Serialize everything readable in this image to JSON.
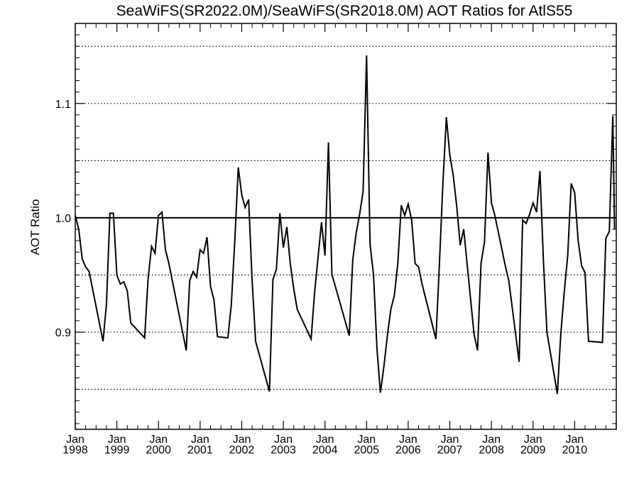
{
  "chart_data": {
    "type": "line",
    "title": "SeaWiFS(SR2022.0M)/SeaWiFS(SR2018.0M)  AOT Ratios for AtlS55",
    "xlabel": "",
    "ylabel": "AOT Ratio",
    "xlim": [
      "1998-01",
      "2011-01"
    ],
    "ylim": [
      0.815,
      1.17
    ],
    "yticks": [
      0.9,
      1.0,
      1.1
    ],
    "ytick_labels": [
      "0.9",
      "1.0",
      "1.1"
    ],
    "xticks": [
      {
        "top": "Jan",
        "bottom": "1998"
      },
      {
        "top": "Jan",
        "bottom": "1999"
      },
      {
        "top": "Jan",
        "bottom": "2000"
      },
      {
        "top": "Jan",
        "bottom": "2001"
      },
      {
        "top": "Jan",
        "bottom": "2002"
      },
      {
        "top": "Jan",
        "bottom": "2003"
      },
      {
        "top": "Jan",
        "bottom": "2004"
      },
      {
        "top": "Jan",
        "bottom": "2005"
      },
      {
        "top": "Jan",
        "bottom": "2006"
      },
      {
        "top": "Jan",
        "bottom": "2007"
      },
      {
        "top": "Jan",
        "bottom": "2008"
      },
      {
        "top": "Jan",
        "bottom": "2009"
      },
      {
        "top": "Jan",
        "bottom": "2010"
      }
    ],
    "reference_line": 1.0,
    "dotted_gridlines": [
      0.85,
      0.9,
      0.95,
      1.05,
      1.1,
      1.15
    ],
    "grid": true,
    "series": [
      {
        "x": [
          "1998-01",
          "1998-02",
          "1998-03",
          "1998-04",
          "1998-05",
          "1998-09",
          "1998-10",
          "1998-11",
          "1998-12",
          "1999-01",
          "1999-02",
          "1999-03",
          "1999-04",
          "1999-05",
          "1999-09",
          "1999-10",
          "1999-11",
          "1999-12",
          "2000-01",
          "2000-02",
          "2000-03",
          "2000-04",
          "2000-09",
          "2000-10",
          "2000-11",
          "2000-12",
          "2001-01",
          "2001-02",
          "2001-03",
          "2001-04",
          "2001-05",
          "2001-06",
          "2001-09",
          "2001-10",
          "2001-11",
          "2001-12",
          "2002-01",
          "2002-02",
          "2002-03",
          "2002-04",
          "2002-05",
          "2002-09",
          "2002-10",
          "2002-11",
          "2002-12",
          "2003-01",
          "2003-02",
          "2003-03",
          "2003-04",
          "2003-05",
          "2003-09",
          "2003-10",
          "2003-11",
          "2003-12",
          "2004-01",
          "2004-02",
          "2004-03",
          "2004-04",
          "2004-08",
          "2004-09",
          "2004-10",
          "2004-11",
          "2004-12",
          "2005-01",
          "2005-02",
          "2005-03",
          "2005-04",
          "2005-05",
          "2005-06",
          "2005-07",
          "2005-08",
          "2005-09",
          "2005-10",
          "2005-11",
          "2005-12",
          "2006-01",
          "2006-02",
          "2006-03",
          "2006-04",
          "2006-05",
          "2006-09",
          "2006-10",
          "2006-11",
          "2006-12",
          "2007-01",
          "2007-02",
          "2007-03",
          "2007-04",
          "2007-05",
          "2007-08",
          "2007-09",
          "2007-10",
          "2007-11",
          "2007-12",
          "2008-01",
          "2008-02",
          "2008-05",
          "2008-06",
          "2008-09",
          "2008-10",
          "2008-11",
          "2008-12",
          "2009-01",
          "2009-02",
          "2009-03",
          "2009-04",
          "2009-05",
          "2009-08",
          "2009-09",
          "2009-10",
          "2009-11",
          "2009-12",
          "2010-01",
          "2010-02",
          "2010-03",
          "2010-04",
          "2010-05",
          "2010-09",
          "2010-10",
          "2010-11",
          "2010-12",
          "2010-12.5"
        ],
        "values": [
          1.002,
          0.99,
          0.964,
          0.957,
          0.953,
          0.892,
          0.925,
          1.004,
          1.004,
          0.95,
          0.942,
          0.944,
          0.936,
          0.908,
          0.895,
          0.947,
          0.975,
          0.969,
          1.002,
          1.005,
          0.972,
          0.96,
          0.884,
          0.945,
          0.953,
          0.948,
          0.972,
          0.969,
          0.983,
          0.94,
          0.928,
          0.896,
          0.895,
          0.924,
          0.98,
          1.044,
          1.02,
          1.009,
          1.016,
          0.945,
          0.892,
          0.848,
          0.946,
          0.955,
          1.004,
          0.974,
          0.992,
          0.96,
          0.938,
          0.92,
          0.894,
          0.934,
          0.965,
          0.996,
          0.967,
          1.066,
          0.95,
          0.94,
          0.897,
          0.963,
          0.987,
          1.003,
          1.023,
          1.142,
          0.977,
          0.95,
          0.885,
          0.847,
          0.87,
          0.897,
          0.92,
          0.932,
          0.96,
          1.011,
          1.002,
          1.012,
          0.998,
          0.96,
          0.957,
          0.942,
          0.894,
          0.96,
          1.03,
          1.088,
          1.055,
          1.037,
          1.01,
          0.976,
          0.99,
          0.898,
          0.884,
          0.96,
          0.979,
          1.057,
          1.013,
          1.002,
          0.958,
          0.945,
          0.874,
          0.998,
          0.995,
          1.003,
          1.013,
          1.005,
          1.041,
          0.962,
          0.9,
          0.846,
          0.898,
          0.935,
          0.967,
          1.03,
          1.022,
          0.98,
          0.958,
          0.952,
          0.892,
          0.891,
          0.982,
          0.988,
          1.089,
          0.99
        ]
      }
    ]
  }
}
